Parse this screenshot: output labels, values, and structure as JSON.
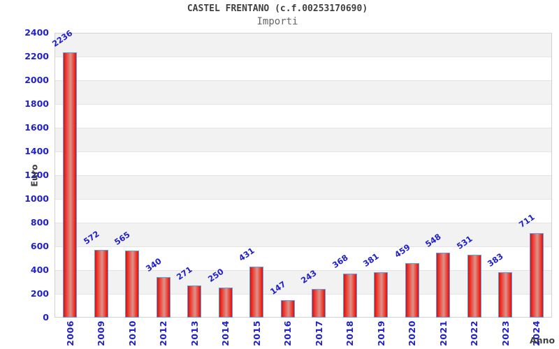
{
  "chart_data": {
    "type": "bar",
    "title": "CASTEL FRENTANO (c.f.00253170690)",
    "subtitle": "Importi",
    "xlabel": "Anno",
    "ylabel": "Euro",
    "categories": [
      "2006",
      "2009",
      "2010",
      "2012",
      "2013",
      "2014",
      "2015",
      "2016",
      "2017",
      "2018",
      "2019",
      "2020",
      "2021",
      "2022",
      "2023",
      "2024"
    ],
    "values": [
      2236,
      572,
      565,
      340,
      271,
      250,
      431,
      147,
      243,
      368,
      381,
      459,
      548,
      531,
      383,
      711
    ],
    "ylim": [
      0,
      2400
    ],
    "ytick_step": 200,
    "grid": "horizontal-bands-alternating",
    "legend": "none",
    "colors": {
      "bar_fill_edge": "#d31111",
      "bar_fill_mid": "#dc938d",
      "bar_border": "#5b9fe6",
      "axis_text": "#1f1fcc",
      "title_text": "#3f3f3f",
      "subtitle_text": "#666666",
      "band_gray": "#f2f2f2",
      "band_white": "#ffffff"
    }
  }
}
